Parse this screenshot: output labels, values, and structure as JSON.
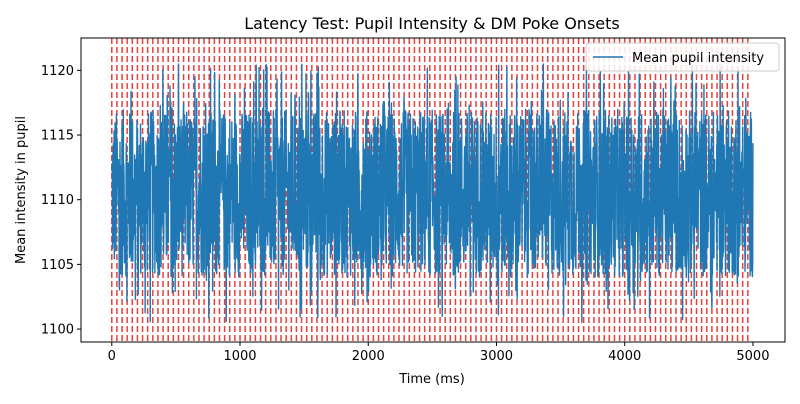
{
  "chart_data": {
    "type": "line",
    "title": "Latency Test: Pupil Intensity & DM Poke Onsets",
    "xlabel": "Time (ms)",
    "ylabel": "Mean intensity in pupil",
    "xlim": [
      -240,
      5250
    ],
    "ylim": [
      1099,
      1122.5
    ],
    "xticks": [
      0,
      1000,
      2000,
      3000,
      4000,
      5000
    ],
    "yticks": [
      1100,
      1105,
      1110,
      1115,
      1120
    ],
    "legend": {
      "position": "top-right",
      "entries": [
        "Mean pupil intensity"
      ]
    },
    "colors": {
      "series": "#1f77b4",
      "onsets": "#e8403c"
    },
    "onset_lines": {
      "start": 0,
      "end": 4960,
      "step": 40,
      "style": "dashed"
    },
    "series": [
      {
        "name": "Mean pupil intensity",
        "x_range": [
          0,
          5000
        ],
        "points": 2500,
        "range_min": 1100.2,
        "range_max": 1120.8,
        "typical_band": [
          1104,
          1117
        ]
      }
    ]
  }
}
